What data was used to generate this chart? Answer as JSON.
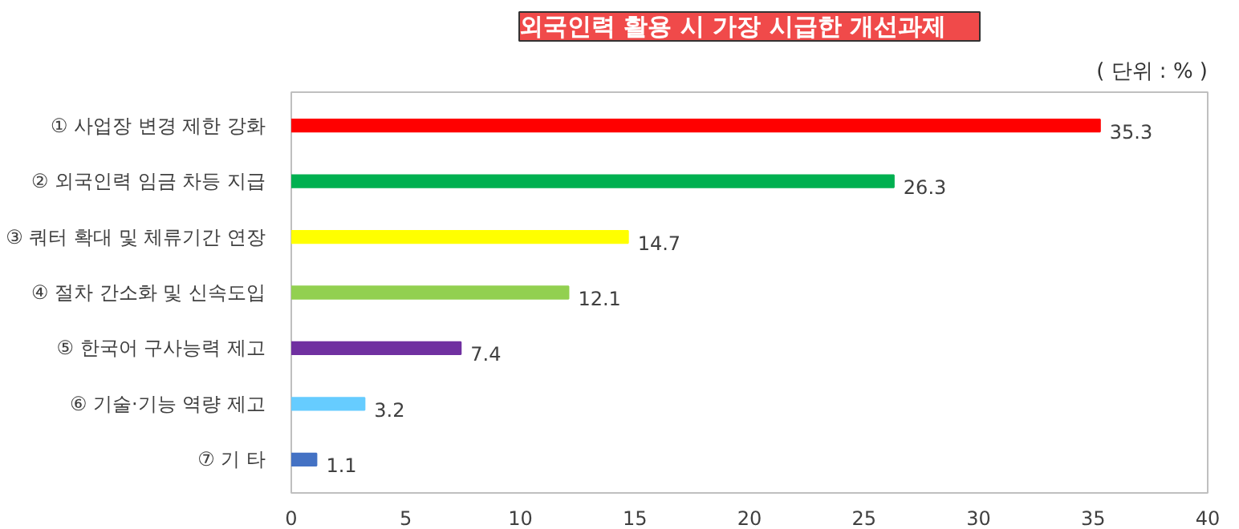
{
  "chart_data": {
    "type": "bar",
    "orientation": "horizontal",
    "title": "외국인력 활용 시 가장 시급한 개선과제",
    "annotations": [
      "( 단위 : % )"
    ],
    "categories": [
      "① 사업장 변경 제한 강화",
      "② 외국인력 임금 차등 지급",
      "③ 쿼터 확대 및 체류기간 연장",
      "④ 절차 간소화 및 신속도입",
      "⑤ 한국어 구사능력 제고",
      "⑥ 기술·기능 역량 제고",
      "⑦ 기 타"
    ],
    "values": [
      35.3,
      26.3,
      14.7,
      12.1,
      7.4,
      3.2,
      1.1
    ],
    "colors": [
      "#ff0000",
      "#00b050",
      "#ffff00",
      "#92d050",
      "#7030a0",
      "#66ccff",
      "#4472c4"
    ],
    "xlim": [
      0,
      40
    ],
    "xticks": [
      0,
      5,
      10,
      15,
      20,
      25,
      30,
      35,
      40
    ],
    "data_labels": true,
    "grid": false
  }
}
